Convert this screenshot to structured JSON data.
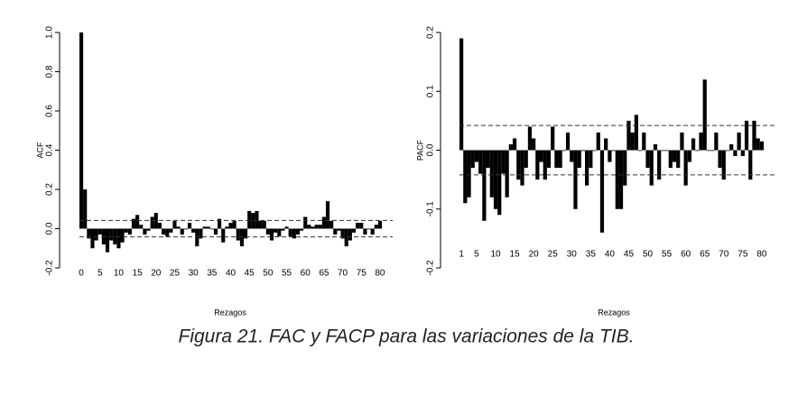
{
  "chart_data": [
    {
      "type": "bar",
      "y_label": "ACF",
      "x_label": "Rezagos",
      "color": "#000000",
      "x": [
        0,
        1,
        2,
        3,
        4,
        5,
        6,
        7,
        8,
        9,
        10,
        11,
        12,
        13,
        14,
        15,
        16,
        17,
        18,
        19,
        20,
        21,
        22,
        23,
        24,
        25,
        26,
        27,
        28,
        29,
        30,
        31,
        32,
        33,
        34,
        35,
        36,
        37,
        38,
        39,
        40,
        41,
        42,
        43,
        44,
        45,
        46,
        47,
        48,
        49,
        50,
        51,
        52,
        53,
        54,
        55,
        56,
        57,
        58,
        59,
        60,
        61,
        62,
        63,
        64,
        65,
        66,
        67,
        68,
        69,
        70,
        71,
        72,
        73,
        74,
        75,
        76,
        77,
        78,
        79,
        80
      ],
      "values": [
        1.0,
        0.2,
        -0.05,
        -0.1,
        -0.06,
        -0.03,
        -0.08,
        -0.12,
        -0.06,
        -0.08,
        -0.1,
        -0.07,
        -0.02,
        -0.03,
        0.05,
        0.07,
        0.02,
        -0.03,
        -0.01,
        0.06,
        0.08,
        0.03,
        -0.03,
        -0.04,
        -0.02,
        0.04,
        0.01,
        -0.03,
        0.0,
        0.03,
        -0.02,
        -0.09,
        -0.05,
        0.01,
        0.01,
        0.0,
        -0.03,
        0.05,
        -0.07,
        0.01,
        0.03,
        0.04,
        -0.06,
        -0.09,
        -0.05,
        0.09,
        0.08,
        0.09,
        0.04,
        0.04,
        -0.03,
        -0.06,
        -0.02,
        -0.04,
        -0.01,
        0.01,
        -0.04,
        -0.05,
        -0.03,
        -0.01,
        0.06,
        0.02,
        0.01,
        0.02,
        0.02,
        0.06,
        0.14,
        0.04,
        -0.03,
        -0.01,
        -0.05,
        -0.09,
        -0.06,
        -0.02,
        0.03,
        0.03,
        -0.03,
        0.0,
        -0.03,
        0.02,
        0.04
      ],
      "xlim": [
        -0.5,
        80.5
      ],
      "xticks": [
        0,
        5,
        10,
        15,
        20,
        25,
        30,
        35,
        40,
        45,
        50,
        55,
        60,
        65,
        70,
        75,
        80
      ],
      "ylim": [
        -0.2,
        1.0
      ],
      "yticks": [
        -0.2,
        {
          "value": 0,
          "label": "0.0"
        },
        0.2,
        0.4,
        0.6,
        0.8,
        {
          "value": 1,
          "label": "1.0"
        }
      ],
      "reference_lines": [
        0.042,
        -0.042
      ]
    },
    {
      "type": "bar",
      "y_label": "PACF",
      "x_label": "Rezagos",
      "color": "#000000",
      "x": [
        1,
        2,
        3,
        4,
        5,
        6,
        7,
        8,
        9,
        10,
        11,
        12,
        13,
        14,
        15,
        16,
        17,
        18,
        19,
        20,
        21,
        22,
        23,
        24,
        25,
        26,
        27,
        28,
        29,
        30,
        31,
        32,
        33,
        34,
        35,
        36,
        37,
        38,
        39,
        40,
        41,
        42,
        43,
        44,
        45,
        46,
        47,
        48,
        49,
        50,
        51,
        52,
        53,
        54,
        55,
        56,
        57,
        58,
        59,
        60,
        61,
        62,
        63,
        64,
        65,
        66,
        67,
        68,
        69,
        70,
        71,
        72,
        73,
        74,
        75,
        76,
        77,
        78,
        79,
        80
      ],
      "values": [
        0.19,
        -0.09,
        -0.08,
        -0.03,
        -0.02,
        -0.04,
        -0.12,
        -0.03,
        -0.08,
        -0.1,
        -0.11,
        -0.04,
        -0.08,
        0.01,
        0.02,
        -0.05,
        -0.06,
        -0.03,
        0.04,
        0.02,
        -0.05,
        -0.02,
        -0.05,
        -0.03,
        0.04,
        -0.03,
        -0.03,
        0.0,
        0.03,
        -0.02,
        -0.1,
        -0.03,
        0.0,
        -0.06,
        -0.03,
        0.0,
        0.03,
        -0.14,
        0.02,
        -0.02,
        0.0,
        -0.1,
        -0.1,
        -0.06,
        0.05,
        0.03,
        0.06,
        0.0,
        0.03,
        -0.03,
        -0.06,
        0.01,
        -0.05,
        0.0,
        0.0,
        -0.03,
        -0.02,
        -0.03,
        0.03,
        -0.06,
        -0.02,
        0.02,
        0.0,
        0.03,
        0.12,
        0.0,
        0.0,
        0.03,
        -0.03,
        -0.05,
        0.0,
        0.01,
        -0.01,
        0.03,
        -0.01,
        0.05,
        -0.05,
        0.05,
        0.02,
        0.015
      ],
      "xlim": [
        0.5,
        80.5
      ],
      "xticks": [
        1,
        5,
        10,
        15,
        20,
        25,
        30,
        35,
        40,
        45,
        50,
        55,
        60,
        65,
        70,
        75,
        80
      ],
      "ylim": [
        -0.2,
        0.2
      ],
      "yticks": [
        -0.2,
        -0.1,
        {
          "value": 0,
          "label": "0.0"
        },
        0.1,
        0.2
      ],
      "reference_lines": [
        0.042,
        -0.042
      ]
    }
  ],
  "caption": "Figura 21. FAC y FACP para las variaciones de la TIB."
}
